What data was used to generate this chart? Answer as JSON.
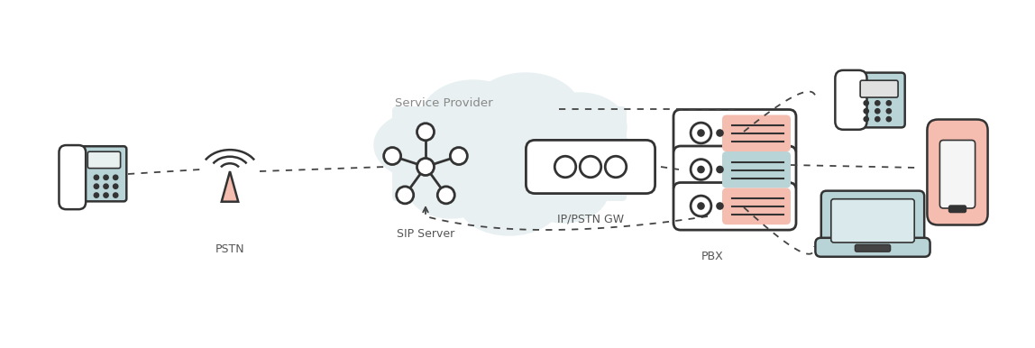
{
  "bg_color": "#ffffff",
  "cloud_color": "#e8f0f1",
  "line_color": "#444444",
  "label_color": "#555555",
  "salmon": "#f5bdb0",
  "teal": "#b8d4d6",
  "dark": "#333333",
  "fig_w": 11.48,
  "fig_h": 3.86,
  "dpi": 100,
  "labels": {
    "pstn": "PSTN",
    "sip_server": "SIP Server",
    "ip_pstn_gw": "IP/PSTN GW",
    "pbx": "PBX",
    "service_provider": "Service Provider"
  }
}
